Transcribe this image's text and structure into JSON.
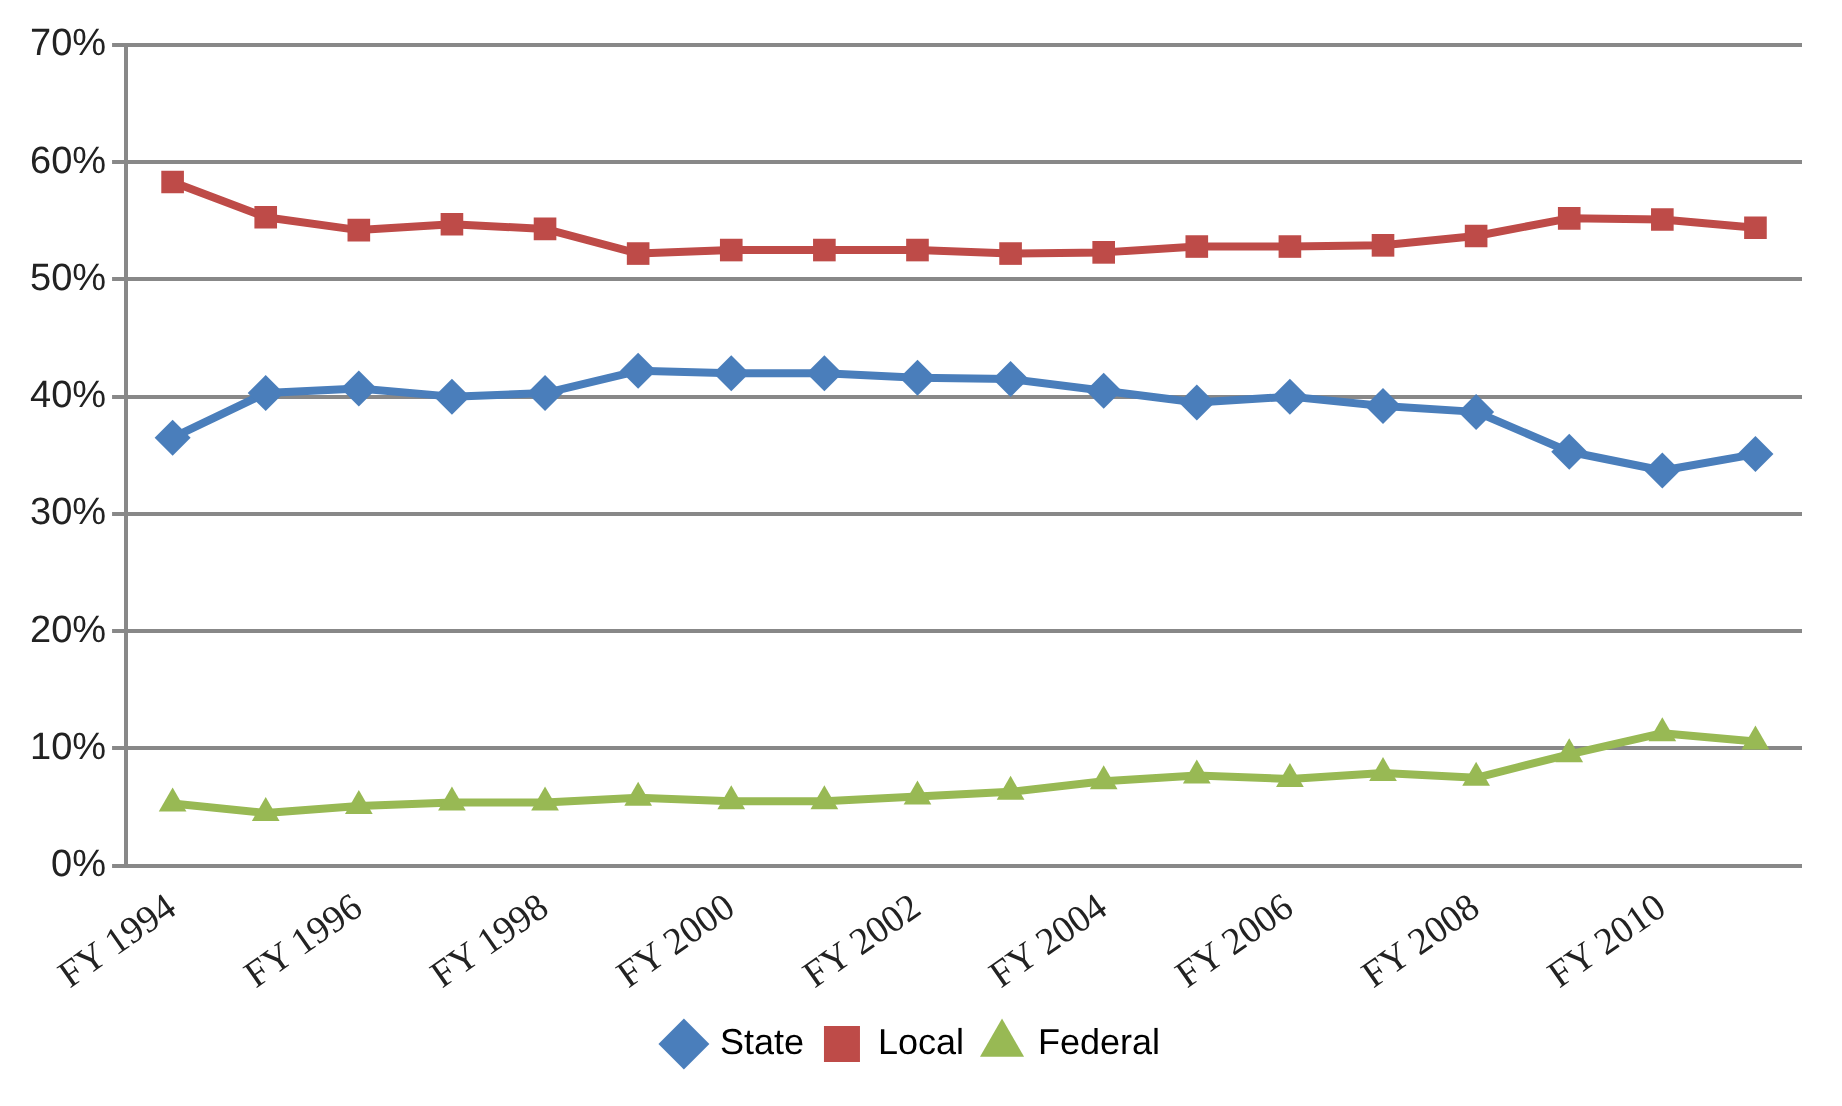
{
  "chart_data": {
    "type": "line",
    "categories": [
      "FY 1994",
      null,
      "FY 1996",
      null,
      "FY 1998",
      null,
      "FY 2000",
      null,
      "FY 2002",
      null,
      "FY 2004",
      null,
      "FY 2006",
      null,
      "FY 2008",
      null,
      "FY 2010",
      null
    ],
    "series": [
      {
        "name": "State",
        "color": "#4a7ebb",
        "marker": "diamond",
        "values": [
          36.5,
          40.3,
          40.7,
          40,
          40.3,
          42.2,
          42,
          42,
          41.6,
          41.5,
          40.5,
          39.5,
          40,
          39.2,
          38.7,
          35.3,
          33.7,
          35.1
        ]
      },
      {
        "name": "Local",
        "color": "#be4b48",
        "marker": "square",
        "values": [
          58.3,
          55.3,
          54.2,
          54.7,
          54.3,
          52.2,
          52.5,
          52.5,
          52.5,
          52.2,
          52.3,
          52.8,
          52.8,
          52.9,
          53.7,
          55.2,
          55.1,
          54.4
        ]
      },
      {
        "name": "Federal",
        "color": "#98b954",
        "marker": "triangle",
        "values": [
          5.3,
          4.5,
          5.1,
          5.4,
          5.4,
          5.8,
          5.5,
          5.5,
          5.9,
          6.3,
          7.2,
          7.7,
          7.4,
          7.9,
          7.5,
          9.5,
          11.3,
          10.6
        ]
      }
    ],
    "ylim": [
      0,
      70
    ],
    "yticks": [
      {
        "value": 0,
        "label": "0%"
      },
      {
        "value": 10,
        "label": "10%"
      },
      {
        "value": 20,
        "label": "20%"
      },
      {
        "value": 30,
        "label": "30%"
      },
      {
        "value": 40,
        "label": "40%"
      },
      {
        "value": 50,
        "label": "50%"
      },
      {
        "value": 60,
        "label": "60%"
      },
      {
        "value": 70,
        "label": "70%"
      }
    ],
    "grid": "y",
    "legend": "bottom"
  }
}
